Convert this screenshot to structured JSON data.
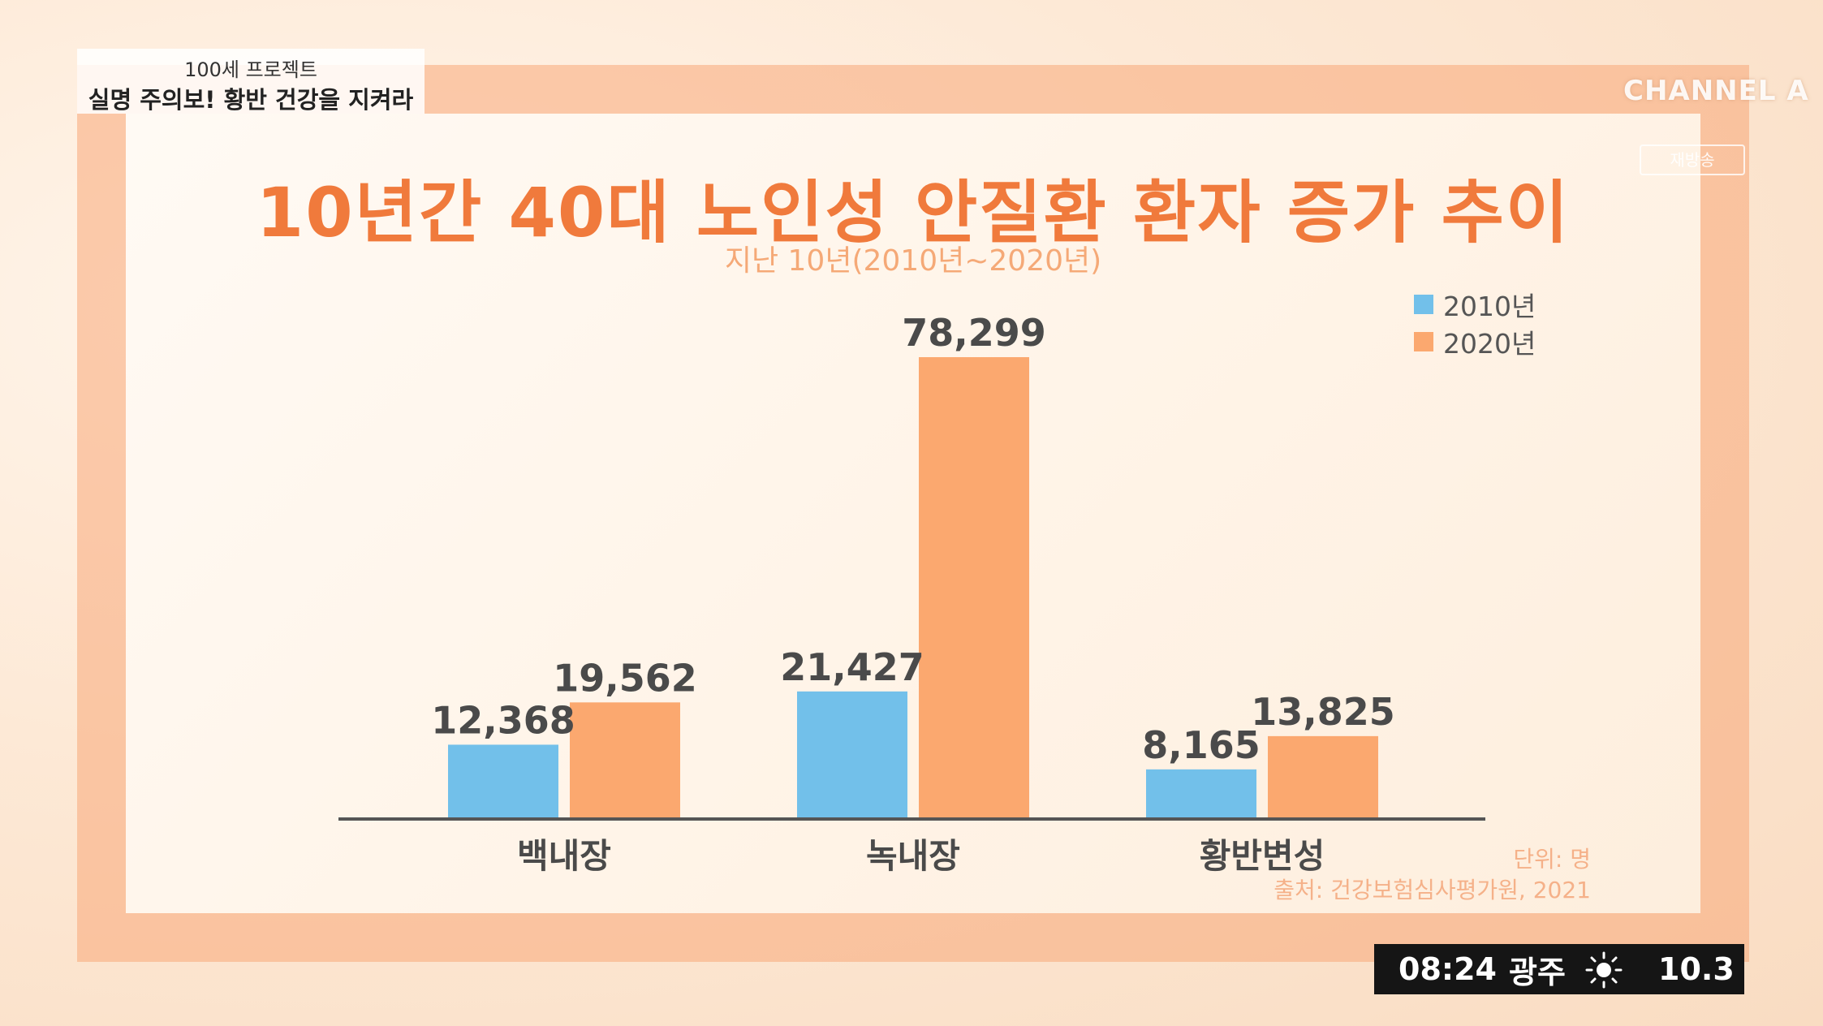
{
  "caption": {
    "program": "100세 프로젝트",
    "episode": "실명 주의보! 황반 건강을 지켜라"
  },
  "logo": {
    "brand": "CHANNEL A",
    "sub": "재방송"
  },
  "chart_data": {
    "type": "bar",
    "title": "10년간 40대 노인성 안질환 환자 증가 추이",
    "subtitle": "지난 10년(2010년~2020년)",
    "categories": [
      "백내장",
      "녹내장",
      "황반변성"
    ],
    "series": [
      {
        "name": "2010년",
        "values": [
          12368,
          21427,
          8165
        ],
        "labels": [
          "12,368",
          "21,427",
          "8,165"
        ],
        "color": "#72c0ea"
      },
      {
        "name": "2020년",
        "values": [
          19562,
          78299,
          13825
        ],
        "labels": [
          "19,562",
          "78,299",
          "13,825"
        ],
        "color": "#fba86f"
      }
    ],
    "ylim": [
      0,
      78299
    ],
    "grid": false,
    "legend": "top-right",
    "unit_note": "단위: 명",
    "source_note": "출처: 건강보험심사평가원, 2021"
  },
  "ticker": {
    "time": "08:24",
    "location": "광주",
    "weather_icon": "sun-icon",
    "temperature": "10.3"
  }
}
